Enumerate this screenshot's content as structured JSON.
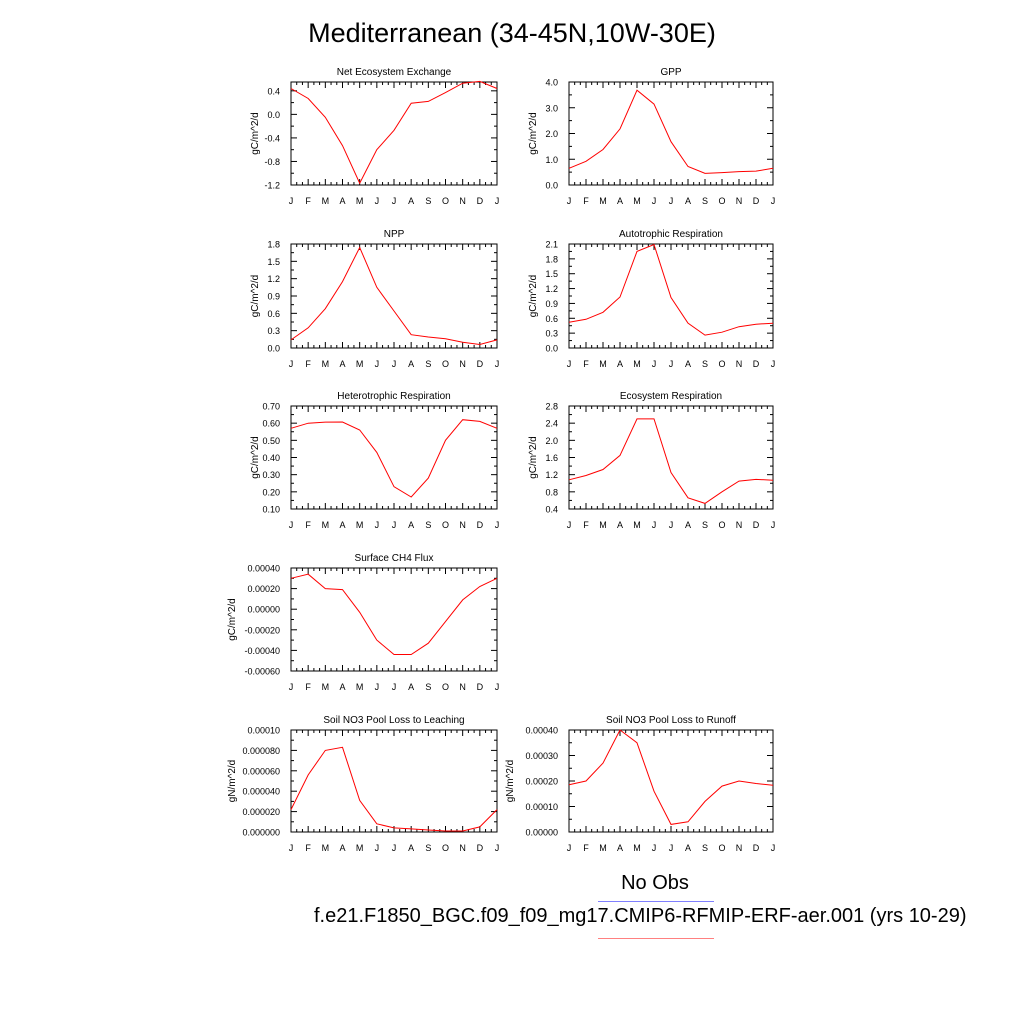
{
  "title": "Mediterranean (34-45N,10W-30E)",
  "months": [
    "J",
    "F",
    "M",
    "A",
    "M",
    "J",
    "J",
    "A",
    "S",
    "O",
    "N",
    "D",
    "J"
  ],
  "legend": {
    "label": "No Obs",
    "obs_color": "#8080ff",
    "model_color": "#ff8080",
    "run": "f.e21.F1850_BGC.f09_f09_mg17.CMIP6-RFMIP-ERF-aer.001 (yrs 10-29)"
  },
  "line_color": "#ff0000",
  "chart_data": [
    {
      "type": "line",
      "title": "Net Ecosystem Exchange",
      "ylabel": "gC/m^2/d",
      "ylim": [
        -1.2,
        0.55
      ],
      "yticks": [
        -1.2,
        -0.8,
        -0.4,
        0.0,
        0.4
      ],
      "yticklabels": [
        "-1.2",
        "-0.8",
        "-0.4",
        "0.0",
        "0.4"
      ],
      "values": [
        0.44,
        0.27,
        -0.05,
        -0.53,
        -1.17,
        -0.6,
        -0.27,
        0.19,
        0.22,
        0.37,
        0.53,
        0.56,
        0.44
      ]
    },
    {
      "type": "line",
      "title": "GPP",
      "ylabel": "gC/m^2/d",
      "ylim": [
        0.0,
        4.0
      ],
      "yticks": [
        0.0,
        1.0,
        2.0,
        3.0,
        4.0
      ],
      "yticklabels": [
        "0.0",
        "1.0",
        "2.0",
        "3.0",
        "4.0"
      ],
      "values": [
        0.65,
        0.92,
        1.38,
        2.18,
        3.68,
        3.14,
        1.68,
        0.72,
        0.45,
        0.48,
        0.52,
        0.54,
        0.65
      ]
    },
    {
      "type": "line",
      "title": "NPP",
      "ylabel": "gC/m^2/d",
      "ylim": [
        0.0,
        1.8
      ],
      "yticks": [
        0.0,
        0.3,
        0.6,
        0.9,
        1.2,
        1.5,
        1.8
      ],
      "yticklabels": [
        "0.0",
        "0.3",
        "0.6",
        "0.9",
        "1.2",
        "1.5",
        "1.8"
      ],
      "values": [
        0.14,
        0.35,
        0.68,
        1.15,
        1.74,
        1.05,
        0.64,
        0.23,
        0.19,
        0.16,
        0.1,
        0.06,
        0.14
      ]
    },
    {
      "type": "line",
      "title": "Autotrophic Respiration",
      "ylabel": "gC/m^2/d",
      "ylim": [
        0.0,
        2.1
      ],
      "yticks": [
        0.0,
        0.3,
        0.6,
        0.9,
        1.2,
        1.5,
        1.8,
        2.1
      ],
      "yticklabels": [
        "0.0",
        "0.3",
        "0.6",
        "0.9",
        "1.2",
        "1.5",
        "1.8",
        "2.1"
      ],
      "values": [
        0.52,
        0.58,
        0.72,
        1.03,
        1.95,
        2.09,
        1.02,
        0.5,
        0.26,
        0.32,
        0.43,
        0.48,
        0.5
      ]
    },
    {
      "type": "line",
      "title": "Heterotrophic Respiration",
      "ylabel": "gC/m^2/d",
      "ylim": [
        0.1,
        0.7
      ],
      "yticks": [
        0.1,
        0.2,
        0.3,
        0.4,
        0.5,
        0.6,
        0.7
      ],
      "yticklabels": [
        "0.10",
        "0.20",
        "0.30",
        "0.40",
        "0.50",
        "0.60",
        "0.70"
      ],
      "values": [
        0.57,
        0.6,
        0.606,
        0.607,
        0.56,
        0.43,
        0.23,
        0.17,
        0.28,
        0.5,
        0.62,
        0.61,
        0.57
      ]
    },
    {
      "type": "line",
      "title": "Ecosystem Respiration",
      "ylabel": "gC/m^2/d",
      "ylim": [
        0.4,
        2.8
      ],
      "yticks": [
        0.4,
        0.8,
        1.2,
        1.6,
        2.0,
        2.4,
        2.8
      ],
      "yticklabels": [
        "0.4",
        "0.8",
        "1.2",
        "1.6",
        "2.0",
        "2.4",
        "2.8"
      ],
      "values": [
        1.08,
        1.18,
        1.32,
        1.65,
        2.5,
        2.5,
        1.25,
        0.66,
        0.53,
        0.8,
        1.05,
        1.09,
        1.07
      ]
    },
    {
      "type": "line",
      "title": "Surface CH4 Flux",
      "ylabel": "gC/m^2/d",
      "ylim": [
        -0.0006,
        0.0004
      ],
      "yticks": [
        -0.0006,
        -0.0004,
        -0.0002,
        0.0,
        0.0002,
        0.0004
      ],
      "yticklabels": [
        "-0.00060",
        "-0.00040",
        "-0.00020",
        "0.00000",
        "0.00020",
        "0.00040"
      ],
      "values": [
        0.0003,
        0.00034,
        0.0002,
        0.00019,
        -3e-05,
        -0.0003,
        -0.00044,
        -0.00044,
        -0.00033,
        -0.00012,
        9e-05,
        0.00022,
        0.0003
      ]
    },
    {
      "type": "line",
      "title": "Soil NO3 Pool Loss to Leaching",
      "ylabel": "gN/m^2/d",
      "ylim": [
        0.0,
        0.0001
      ],
      "yticks": [
        0.0,
        2e-05,
        4e-05,
        6e-05,
        8e-05,
        0.0001
      ],
      "yticklabels": [
        "0.000000",
        "0.000020",
        "0.000040",
        "0.000060",
        "0.000080",
        "0.00010"
      ],
      "values": [
        2.2e-05,
        5.6e-05,
        8e-05,
        8.3e-05,
        3.1e-05,
        8e-06,
        4e-06,
        3e-06,
        2e-06,
        1e-06,
        1e-06,
        5e-06,
        2.2e-05
      ]
    },
    {
      "type": "line",
      "title": "Soil NO3 Pool Loss to Runoff",
      "ylabel": "gN/m^2/d",
      "ylim": [
        0.0,
        0.0004
      ],
      "yticks": [
        0.0,
        0.0001,
        0.0002,
        0.0003,
        0.0004
      ],
      "yticklabels": [
        "0.00000",
        "0.00010",
        "0.00020",
        "0.00030",
        "0.00040"
      ],
      "values": [
        0.000185,
        0.0002,
        0.00027,
        0.0004,
        0.00035,
        0.00016,
        3e-05,
        4e-05,
        0.00012,
        0.00018,
        0.0002,
        0.00019,
        0.000183
      ]
    }
  ]
}
